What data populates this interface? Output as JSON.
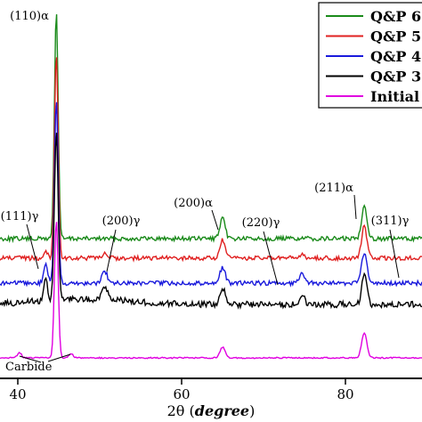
{
  "chart_data": {
    "type": "line",
    "xlabel_prefix": "2θ (",
    "xlabel_unit": "degree",
    "xlabel_suffix": ")",
    "xlim": [
      33,
      93
    ],
    "xticks": [
      40,
      60,
      80
    ],
    "grid": false,
    "legend_position": "top-right",
    "series": [
      {
        "name": "Q&P 6",
        "color": "#1a8a1a",
        "baseline": 268,
        "offset": 0
      },
      {
        "name": "Q&P 5",
        "color": "#e02020",
        "baseline": 290,
        "offset": 1
      },
      {
        "name": "Q&P 4",
        "color": "#1a1adc",
        "baseline": 318,
        "offset": 2
      },
      {
        "name": "Q&P 3",
        "color": "#000000",
        "baseline": 342,
        "offset": 3
      },
      {
        "name": "Initial",
        "color": "#e000e0",
        "baseline": 402,
        "offset": 4
      }
    ],
    "peaks": [
      {
        "x": 44.7,
        "label": "(110)α"
      },
      {
        "x": 65.0,
        "label": "(200)α"
      },
      {
        "x": 82.3,
        "label": "(211)α"
      },
      {
        "x": 43.4,
        "label": "(111)γ"
      },
      {
        "x": 50.6,
        "label": "(200)γ"
      },
      {
        "x": 74.7,
        "label": "(220)γ"
      },
      {
        "x": 90.7,
        "label": "(311)γ"
      }
    ],
    "annotations": [
      {
        "label": "Carbide",
        "x": [
          40.2,
          46.5
        ]
      }
    ]
  }
}
